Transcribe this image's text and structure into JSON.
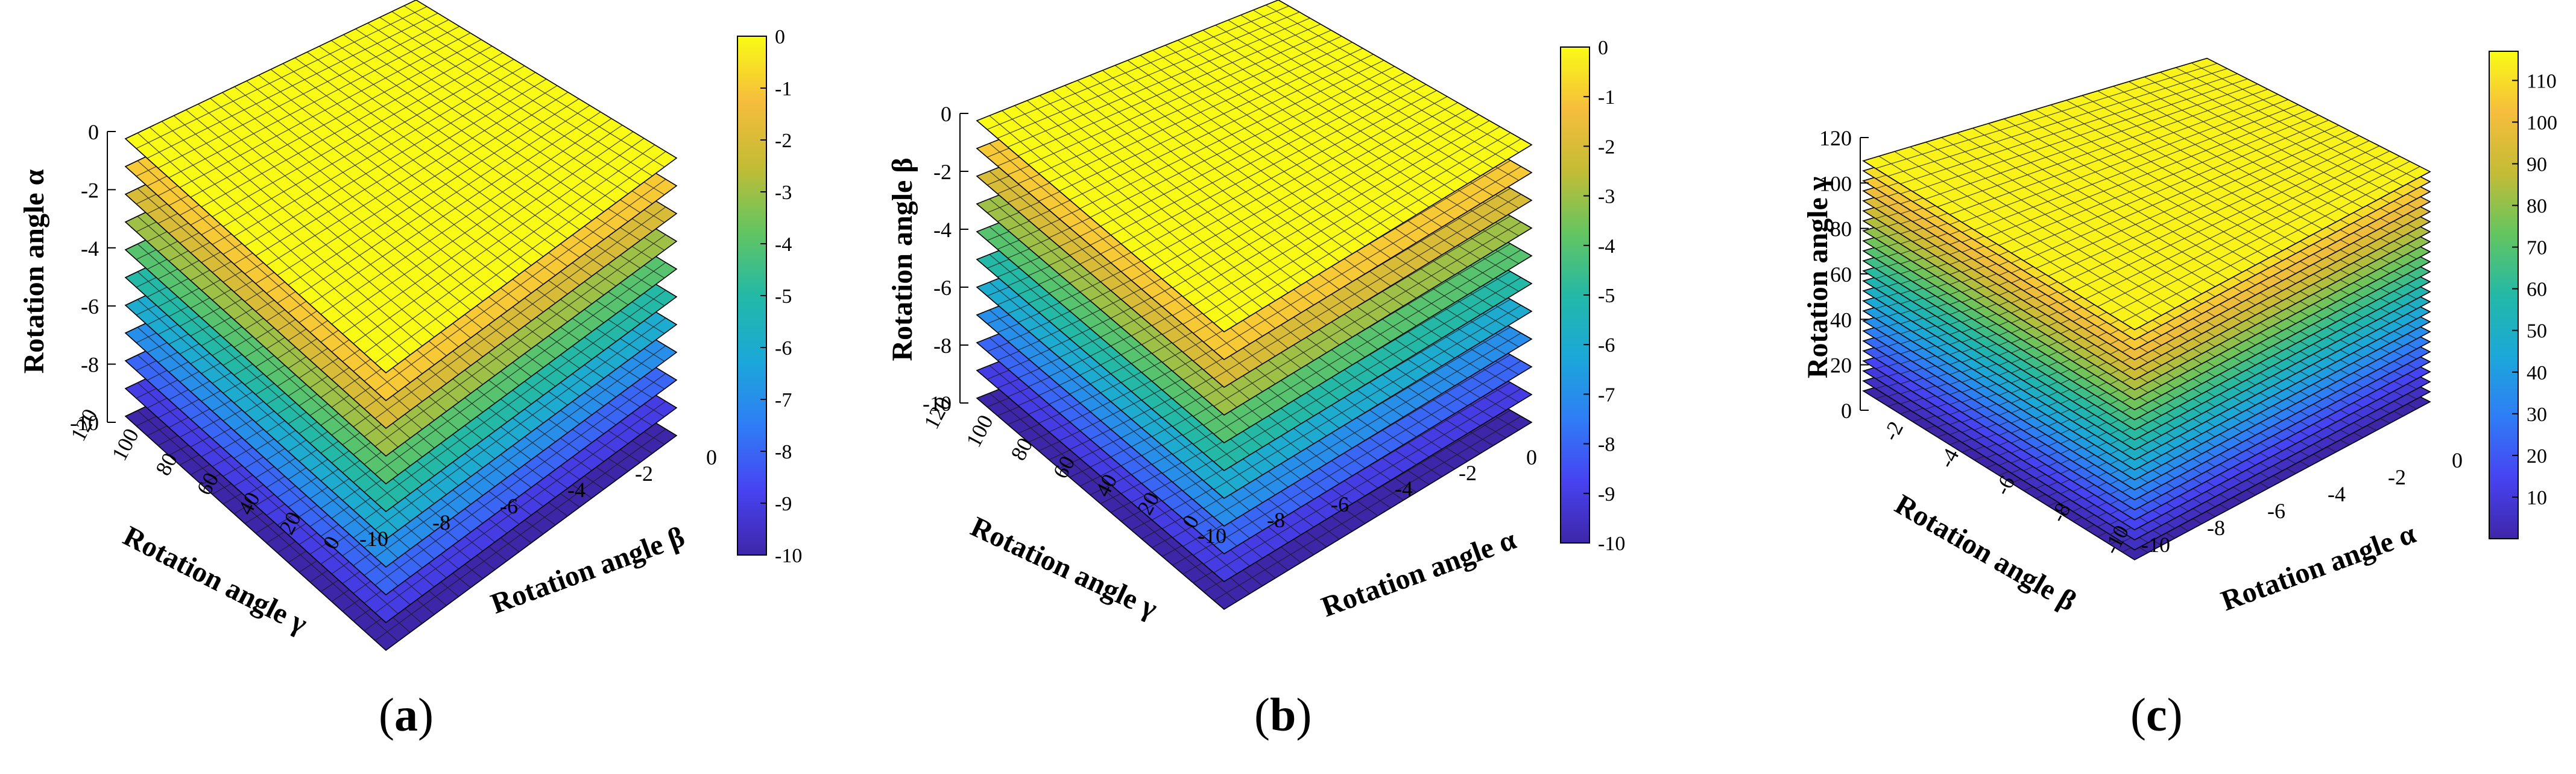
{
  "figure": {
    "panel_labels": [
      {
        "open": "(",
        "letter": "a",
        "close": ")"
      },
      {
        "open": "(",
        "letter": "b",
        "close": ")"
      },
      {
        "open": "(",
        "letter": "c",
        "close": ")"
      }
    ]
  },
  "colors": {
    "colormap": [
      "#3e26a8",
      "#4743f2",
      "#2f7df6",
      "#1ba8d9",
      "#23b9a6",
      "#64c560",
      "#c4bc35",
      "#f6bd3c",
      "#f9fb15"
    ],
    "edge": "#000000"
  },
  "chart_data": [
    {
      "type": "surface3d",
      "title": "",
      "vertical_axis_label": "Rotation angle α",
      "left_axis_label": "Rotation angle γ",
      "right_axis_label": "Rotation angle β",
      "vertical_ticks": [
        "0",
        "-2",
        "-4",
        "-6",
        "-8",
        "-10"
      ],
      "left_ticks": [
        "120",
        "100",
        "80",
        "60",
        "40",
        "20",
        "0"
      ],
      "right_ticks": [
        "-10",
        "-8",
        "-6",
        "-4",
        "-2",
        "0"
      ],
      "colorbar_ticks": [
        "0",
        "-1",
        "-2",
        "-3",
        "-4",
        "-5",
        "-6",
        "-7",
        "-8",
        "-9",
        "-10"
      ],
      "colorbar_range": [
        -10,
        0
      ],
      "layer_levels": [
        -10,
        -9,
        -8,
        -7,
        -6,
        -5,
        -4,
        -3,
        -2,
        -1,
        0
      ],
      "vertical_range": [
        -10,
        0
      ]
    },
    {
      "type": "surface3d",
      "title": "",
      "vertical_axis_label": "Rotation angle β",
      "left_axis_label": "Rotation angle γ",
      "right_axis_label": "Rotation angle α",
      "vertical_ticks": [
        "0",
        "-2",
        "-4",
        "-6",
        "-8",
        "-10"
      ],
      "left_ticks": [
        "120",
        "100",
        "80",
        "60",
        "40",
        "20",
        "0"
      ],
      "right_ticks": [
        "-10",
        "-8",
        "-6",
        "-4",
        "-2",
        "0"
      ],
      "colorbar_ticks": [
        "0",
        "-1",
        "-2",
        "-3",
        "-4",
        "-5",
        "-6",
        "-7",
        "-8",
        "-9",
        "-10"
      ],
      "colorbar_range": [
        -10,
        0
      ],
      "layer_levels": [
        -10,
        -9,
        -8,
        -7,
        -6,
        -5,
        -4,
        -3,
        -2,
        -1,
        0
      ],
      "vertical_range": [
        -10,
        0
      ]
    },
    {
      "type": "surface3d",
      "title": "",
      "vertical_axis_label": "Rotation angle γ",
      "left_axis_label": "Rotation angle β",
      "right_axis_label": "Rotation angle α",
      "vertical_ticks": [
        "120",
        "100",
        "80",
        "60",
        "40",
        "20",
        "0"
      ],
      "left_ticks": [
        "-2",
        "-4",
        "-6",
        "-8",
        "-10"
      ],
      "right_ticks": [
        "-10",
        "-8",
        "-6",
        "-4",
        "-2",
        "0"
      ],
      "colorbar_ticks": [
        "110",
        "100",
        "90",
        "80",
        "70",
        "60",
        "50",
        "40",
        "30",
        "20",
        "10"
      ],
      "colorbar_range": [
        0,
        117
      ],
      "layer_levels": [
        0,
        5,
        10,
        15,
        20,
        25,
        30,
        35,
        40,
        45,
        50,
        55,
        60,
        65,
        70,
        75,
        80,
        85,
        90,
        95,
        100,
        105,
        110,
        115
      ],
      "vertical_range": [
        0,
        120
      ]
    }
  ]
}
